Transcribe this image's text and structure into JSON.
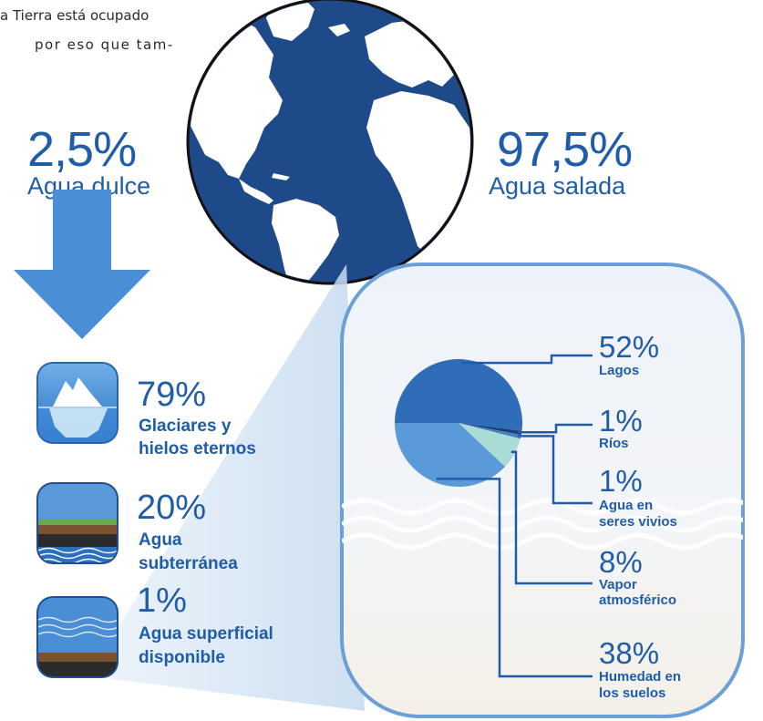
{
  "intro": {
    "line1": "a Tierra está ocupado",
    "line2": "por eso que tam-"
  },
  "fresh": {
    "percent": "2,5%",
    "label": "Agua dulce"
  },
  "salt": {
    "percent": "97,5%",
    "label": "Agua salada"
  },
  "freshwater_breakdown": [
    {
      "percent": "79%",
      "label_lines": [
        "Glaciares y",
        "hielos eternos"
      ],
      "icon": "iceberg-icon"
    },
    {
      "percent": "20%",
      "label_lines": [
        "Agua",
        "subterránea"
      ],
      "icon": "groundwater-icon"
    },
    {
      "percent": "1%",
      "label_lines": [
        "Agua superficial",
        "disponible"
      ],
      "icon": "surface-water-icon"
    }
  ],
  "legend": [
    {
      "percent": "52%",
      "label_lines": [
        "Lagos"
      ]
    },
    {
      "percent": "1%",
      "label_lines": [
        "Ríos"
      ]
    },
    {
      "percent": "1%",
      "label_lines": [
        "Agua en",
        "seres vivios"
      ]
    },
    {
      "percent": "8%",
      "label_lines": [
        "Vapor",
        "atmosférico"
      ]
    },
    {
      "percent": "38%",
      "label_lines": [
        "Humedad en",
        "los suelos"
      ]
    }
  ],
  "colors": {
    "accent": "#1f5da8",
    "globe": "#1f4a8a",
    "arrow": "#4a8fd6",
    "panel_border": "#6a9fd8"
  },
  "chart_data": {
    "type": "pie",
    "categories": [
      "Lagos",
      "Ríos",
      "Agua en seres vivios",
      "Vapor atmosférico",
      "Humedad en los suelos"
    ],
    "values": [
      52,
      1,
      1,
      8,
      38
    ],
    "colors": [
      "#2f6db8",
      "#1a3e78",
      "#4c7fc0",
      "#a9dcd6",
      "#5a9ad8"
    ]
  }
}
